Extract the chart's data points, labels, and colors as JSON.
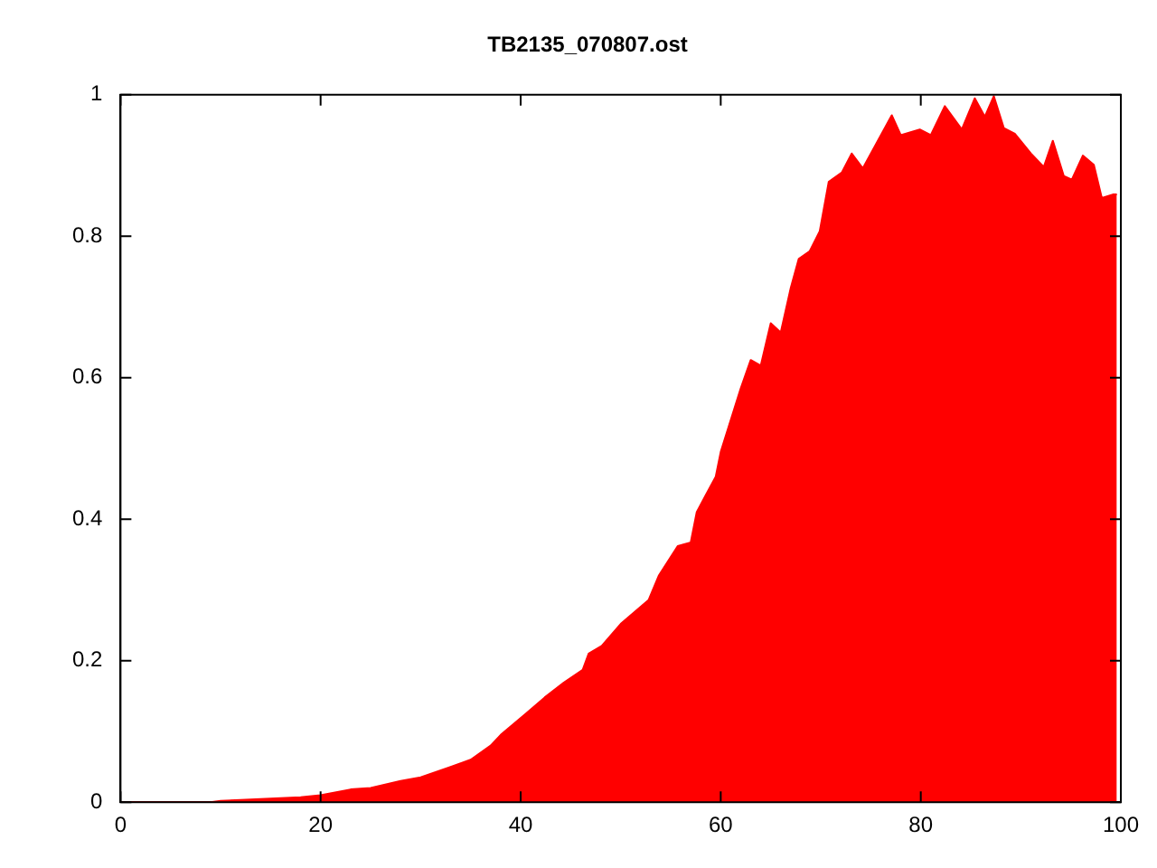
{
  "chart_data": {
    "type": "area",
    "title": "TB2135_070807.ost",
    "x": [
      0,
      5,
      9,
      10,
      12,
      15,
      18,
      20,
      23,
      25,
      28,
      30,
      33,
      35,
      37,
      38,
      40.5,
      42.4,
      44.3,
      46.2,
      46.8,
      48.1,
      50,
      52.8,
      53.8,
      55.7,
      57,
      57.6,
      58.5,
      59.5,
      60,
      62,
      63,
      64,
      65,
      66,
      67,
      67.8,
      68.9,
      69.9,
      70.8,
      72.1,
      73.1,
      74.2,
      77.1,
      78,
      79.9,
      81,
      82.4,
      84.1,
      85.4,
      86.4,
      87.3,
      88.3,
      89.4,
      91,
      92.3,
      93.2,
      94.3,
      95.1,
      96.2,
      97.3,
      98.1,
      99.2,
      99.6
    ],
    "series": [
      {
        "color": "#ff0000",
        "values": [
          0,
          0,
          0,
          0.002,
          0.003,
          0.005,
          0.007,
          0.01,
          0.018,
          0.02,
          0.03,
          0.035,
          0.05,
          0.06,
          0.08,
          0.095,
          0.125,
          0.148,
          0.169,
          0.187,
          0.21,
          0.221,
          0.252,
          0.286,
          0.32,
          0.362,
          0.367,
          0.41,
          0.434,
          0.46,
          0.495,
          0.585,
          0.625,
          0.617,
          0.677,
          0.664,
          0.727,
          0.768,
          0.779,
          0.807,
          0.877,
          0.89,
          0.917,
          0.896,
          0.971,
          0.943,
          0.951,
          0.943,
          0.984,
          0.951,
          0.995,
          0.969,
          0.998,
          0.953,
          0.945,
          0.917,
          0.898,
          0.935,
          0.885,
          0.88,
          0.914,
          0.901,
          0.854,
          0.859,
          0.859
        ]
      }
    ],
    "xlim": [
      0,
      100
    ],
    "xticks": [
      0,
      20,
      40,
      60,
      80,
      100
    ],
    "ylim": [
      0,
      1
    ],
    "yticks": [
      0,
      0.2,
      0.4,
      0.6,
      0.8,
      1
    ],
    "grid": false,
    "legend": false
  }
}
